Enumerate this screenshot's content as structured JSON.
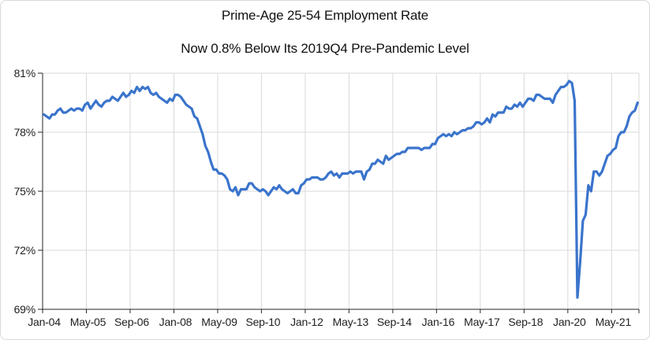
{
  "colors": {
    "line": "#3a74cc",
    "gridline": "#d9d9d9",
    "axis": "#262626",
    "tick_label": "#1f1f1f",
    "title_text": "#111111",
    "background": "#ffffff",
    "frame_border": "#d9d9d9"
  },
  "chart_data": {
    "type": "line",
    "title": "Prime-Age 25-54 Employment Rate",
    "subtitle": "Now 0.8% Below Its 2019Q4 Pre-Pandemic Level",
    "series_name": "Prime-age (25-54) employment rate, monthly",
    "x_start": "Jan-2004",
    "x_end": "Feb-2022",
    "frequency": "monthly",
    "ylim": [
      69,
      81
    ],
    "y_tick_values": [
      81,
      78,
      75,
      72,
      69
    ],
    "y_tick_labels": [
      "81%",
      "78%",
      "75%",
      "72%",
      "69%"
    ],
    "x_tick_labels": [
      "Jan-04",
      "May-05",
      "Sep-06",
      "Jan-08",
      "May-09",
      "Sep-10",
      "Jan-12",
      "May-13",
      "Sep-14",
      "Jan-16",
      "May-17",
      "Sep-18",
      "Jan-20",
      "May-21"
    ],
    "x_tick_interval_months": 16,
    "grid": true,
    "legend": "none",
    "values": [
      78.9,
      78.8,
      78.7,
      78.9,
      78.9,
      79.1,
      79.2,
      79.0,
      79.0,
      79.1,
      79.2,
      79.1,
      79.2,
      79.2,
      79.1,
      79.4,
      79.5,
      79.2,
      79.4,
      79.6,
      79.4,
      79.3,
      79.5,
      79.6,
      79.6,
      79.8,
      79.7,
      79.6,
      79.8,
      80.0,
      79.8,
      79.9,
      80.1,
      80.0,
      80.3,
      80.1,
      80.3,
      80.2,
      80.3,
      80.0,
      79.9,
      80.0,
      79.8,
      79.7,
      79.6,
      79.5,
      79.7,
      79.6,
      79.9,
      79.9,
      79.8,
      79.6,
      79.4,
      79.3,
      79.2,
      78.8,
      78.7,
      78.3,
      77.9,
      77.3,
      77.0,
      76.5,
      76.1,
      76.1,
      75.9,
      75.9,
      75.8,
      75.6,
      75.1,
      75.0,
      75.2,
      74.8,
      75.1,
      75.1,
      75.1,
      75.4,
      75.4,
      75.2,
      75.1,
      75.0,
      75.1,
      75.0,
      74.8,
      75.0,
      75.2,
      75.1,
      75.3,
      75.1,
      75.0,
      74.9,
      75.0,
      75.1,
      74.9,
      74.9,
      75.3,
      75.4,
      75.6,
      75.6,
      75.7,
      75.7,
      75.7,
      75.6,
      75.6,
      75.7,
      75.9,
      76.0,
      75.8,
      75.9,
      75.7,
      75.9,
      75.9,
      75.9,
      76.0,
      75.9,
      76.0,
      76.0,
      76.0,
      75.6,
      76.0,
      76.1,
      76.4,
      76.4,
      76.6,
      76.5,
      76.4,
      76.8,
      76.6,
      76.7,
      76.8,
      76.9,
      76.9,
      77.0,
      77.0,
      77.2,
      77.2,
      77.2,
      77.2,
      77.2,
      77.1,
      77.2,
      77.2,
      77.2,
      77.4,
      77.4,
      77.7,
      77.8,
      77.9,
      77.8,
      77.9,
      77.8,
      78.0,
      77.9,
      78.0,
      78.1,
      78.1,
      78.2,
      78.2,
      78.3,
      78.5,
      78.5,
      78.4,
      78.5,
      78.7,
      78.5,
      78.9,
      78.8,
      79.0,
      79.0,
      79.0,
      79.3,
      79.2,
      79.2,
      79.4,
      79.3,
      79.5,
      79.3,
      79.5,
      79.7,
      79.7,
      79.6,
      79.9,
      79.9,
      79.8,
      79.7,
      79.7,
      79.7,
      79.5,
      79.9,
      80.1,
      80.3,
      80.3,
      80.4,
      80.6,
      80.5,
      79.6,
      69.6,
      71.4,
      73.5,
      73.8,
      75.3,
      75.0,
      76.0,
      76.0,
      75.8,
      76.0,
      76.4,
      76.8,
      76.9,
      77.1,
      77.2,
      77.8,
      78.0,
      78.0,
      78.3,
      78.8,
      79.0,
      79.1,
      79.5
    ]
  }
}
